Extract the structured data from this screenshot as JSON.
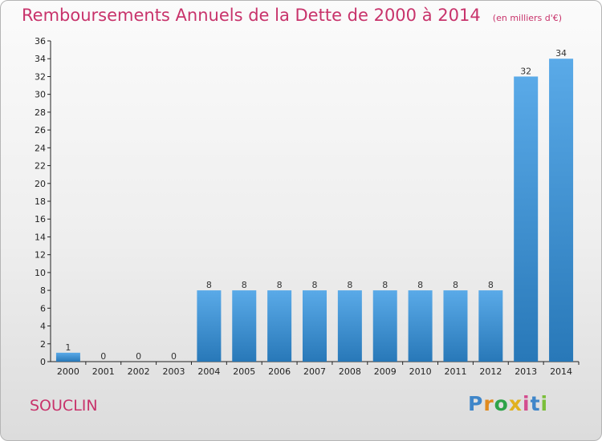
{
  "title": "Remboursements Annuels de la Dette de 2000 à 2014",
  "units": "(en milliers d'€)",
  "commune": "SOUCLIN",
  "logo": {
    "p": "P",
    "r": "r",
    "o": "o",
    "x": "x",
    "i1": "i",
    "t": "t",
    "i2": "i"
  },
  "colors": {
    "bar_light": "#5aaae8",
    "bar_dark": "#2878b8",
    "title": "#c8336b"
  },
  "chart_data": {
    "type": "bar",
    "title": "Remboursements Annuels de la Dette de 2000 à 2014",
    "categories": [
      "2000",
      "2001",
      "2002",
      "2003",
      "2004",
      "2005",
      "2006",
      "2007",
      "2008",
      "2009",
      "2010",
      "2011",
      "2012",
      "2013",
      "2014"
    ],
    "values": [
      1,
      0,
      0,
      0,
      8,
      8,
      8,
      8,
      8,
      8,
      8,
      8,
      8,
      32,
      34
    ],
    "ylim": [
      0,
      36
    ],
    "yticks": [
      0,
      2,
      4,
      6,
      8,
      10,
      12,
      14,
      16,
      18,
      20,
      22,
      24,
      26,
      28,
      30,
      32,
      34,
      36
    ],
    "grid": false
  }
}
